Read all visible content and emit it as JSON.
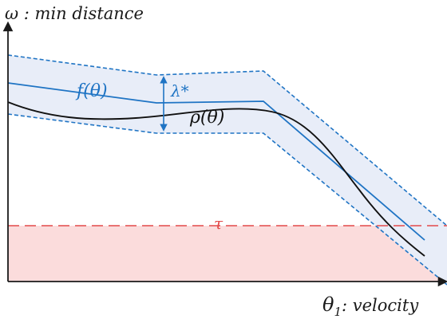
{
  "axes": {
    "y_title": "ω : min distance",
    "x_title_main": "θ",
    "x_title_sub": "1",
    "x_title_suffix": ": velocity"
  },
  "labels": {
    "f_label": "f(θ)",
    "rho_label": "ρ(θ)",
    "lambda_label": "λ*",
    "tau_label": "τ"
  },
  "colors": {
    "axis": "#1a1a1a",
    "blue": "#1f74c4",
    "band_fill": "#e8edf8",
    "black_curve": "#111111",
    "red": "#e34a4a",
    "red_fill": "#fbdcdc"
  }
}
